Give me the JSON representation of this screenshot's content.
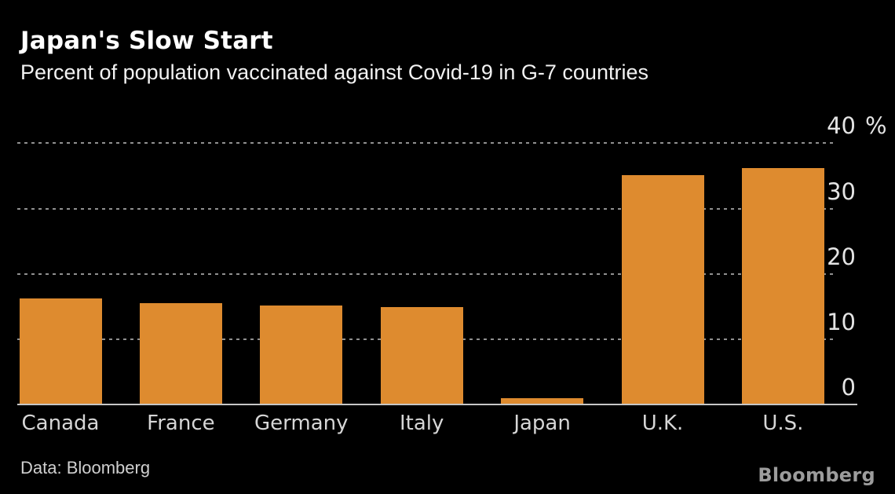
{
  "header": {
    "title": "Japan's Slow Start",
    "subtitle": "Percent of population vaccinated against Covid-19 in G-7 countries"
  },
  "chart_data": {
    "type": "bar",
    "title": "Japan's Slow Start",
    "subtitle": "Percent of population vaccinated against Covid-19 in G-7 countries",
    "categories": [
      "Canada",
      "France",
      "Germany",
      "Italy",
      "Japan",
      "U.K.",
      "U.S."
    ],
    "values": [
      16.1,
      15.4,
      15.0,
      14.8,
      0.9,
      35.0,
      36.1
    ],
    "unit_label": "%",
    "ylim": [
      0,
      40
    ],
    "yticks": [
      0,
      10,
      20,
      30,
      40
    ],
    "grid": "horizontal-dotted",
    "axis_labels_side": "right",
    "legend": "none",
    "colors": {
      "bar": "#de8b2f",
      "background": "#000000",
      "gridline": "#909090",
      "axis_line": "#c6c6c6",
      "tick_text": "#e4e4e4",
      "category_text": "#d6d6d6"
    }
  },
  "footer": {
    "source": "Data: Bloomberg",
    "logo": "Bloomberg"
  }
}
